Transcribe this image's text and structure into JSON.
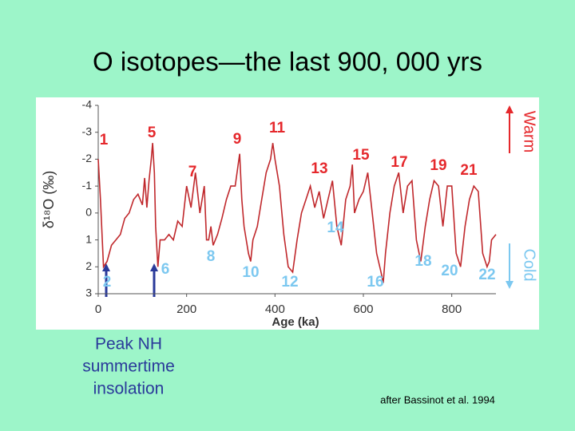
{
  "chart_data": {
    "type": "line",
    "title": "O isotopes—the last 900, 000 yrs",
    "x_label": "Age (ka)",
    "y_label": "δ¹⁸O (‰)",
    "x": [
      0,
      5,
      12,
      20,
      30,
      40,
      50,
      60,
      70,
      80,
      90,
      100,
      105,
      110,
      115,
      120,
      123,
      127,
      130,
      135,
      140,
      150,
      160,
      170,
      180,
      190,
      200,
      210,
      220,
      230,
      240,
      245,
      250,
      255,
      260,
      270,
      280,
      290,
      300,
      310,
      320,
      325,
      330,
      340,
      345,
      350,
      360,
      370,
      380,
      390,
      395,
      400,
      410,
      420,
      430,
      440,
      450,
      460,
      470,
      480,
      490,
      500,
      510,
      520,
      530,
      540,
      550,
      560,
      570,
      575,
      580,
      590,
      600,
      610,
      620,
      630,
      640,
      645,
      650,
      660,
      670,
      680,
      690,
      700,
      710,
      720,
      730,
      740,
      750,
      760,
      770,
      780,
      790,
      800,
      810,
      820,
      830,
      840,
      850,
      860,
      870,
      880,
      885,
      890,
      900
    ],
    "values": [
      -2.0,
      -0.5,
      2.0,
      1.8,
      1.2,
      1.0,
      0.8,
      0.2,
      0.0,
      -0.5,
      -0.7,
      -0.3,
      -1.3,
      -0.2,
      -1.2,
      -2.0,
      -2.6,
      -1.5,
      0.5,
      2.0,
      1.0,
      1.0,
      0.8,
      1.0,
      0.3,
      0.5,
      -1.0,
      -0.2,
      -1.5,
      0.0,
      -1.0,
      1.0,
      1.0,
      0.5,
      1.2,
      0.8,
      0.2,
      -0.5,
      -1.0,
      -1.0,
      -2.2,
      -0.5,
      0.5,
      1.5,
      1.8,
      1.0,
      0.5,
      -0.5,
      -1.5,
      -2.0,
      -2.6,
      -2.0,
      -1.0,
      0.8,
      2.0,
      2.2,
      1.0,
      0.0,
      -0.5,
      -1.0,
      -0.2,
      -0.8,
      0.2,
      -0.5,
      -1.2,
      0.5,
      1.2,
      -0.5,
      -1.0,
      -1.8,
      0.0,
      -0.5,
      -0.8,
      -1.5,
      0.0,
      1.5,
      2.2,
      2.6,
      1.5,
      0.0,
      -1.0,
      -1.5,
      0.0,
      -1.0,
      -1.2,
      1.0,
      1.8,
      0.5,
      -0.5,
      -1.2,
      -1.0,
      0.5,
      -1.0,
      -1.0,
      1.5,
      2.0,
      0.5,
      -0.5,
      -1.0,
      -0.8,
      1.5,
      2.0,
      1.8,
      1.0,
      0.8
    ],
    "color": "#c0282c",
    "xlim": [
      0,
      900
    ],
    "xticks": [
      0,
      200,
      400,
      600,
      800
    ],
    "ylim": [
      -4,
      3
    ],
    "yticks": [
      -4,
      -3,
      -2,
      -1,
      0,
      1,
      2,
      3
    ],
    "y_inverted": true,
    "warm_label": "Warm",
    "cold_label": "Cold",
    "warm_stages": {
      "color": "#e5282c",
      "labels": [
        "1",
        "5",
        "7",
        "9",
        "11",
        "13",
        "15",
        "17",
        "19",
        "21"
      ]
    },
    "cold_stages": {
      "color": "#7cc8f0",
      "labels": [
        "2",
        "6",
        "8",
        "10",
        "12",
        "14",
        "16",
        "18",
        "20",
        "22"
      ]
    },
    "insolation_note": [
      "Peak NH",
      "summertime",
      "insolation"
    ],
    "source": "after Bassinot et al. 1994"
  }
}
